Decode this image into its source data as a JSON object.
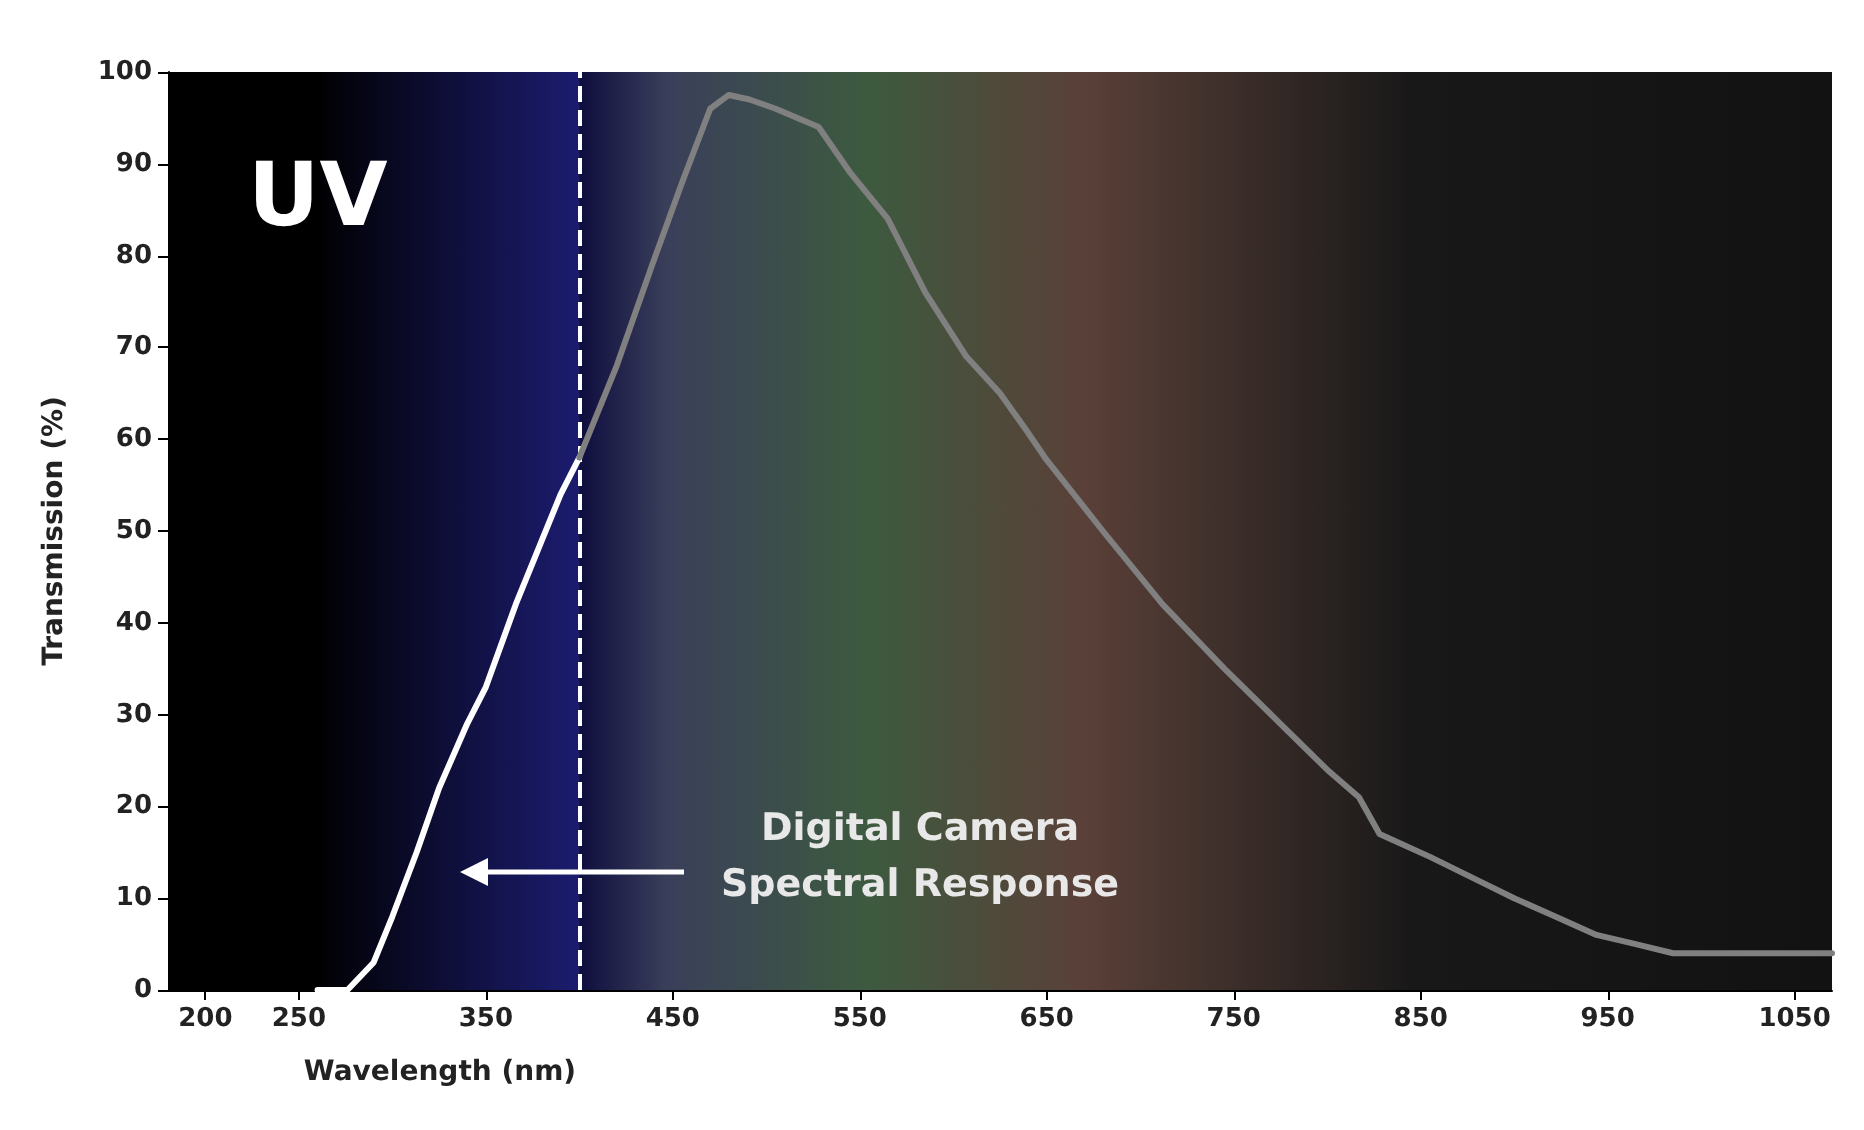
{
  "chart_data": {
    "type": "line",
    "xlabel": "Wavelength (nm)",
    "ylabel": "Transmission (%)",
    "xlim": [
      180,
      1070
    ],
    "xticks": [
      200,
      250,
      350,
      450,
      550,
      650,
      750,
      850,
      950,
      1050
    ],
    "ylim": [
      0,
      100
    ],
    "yticks": [
      0,
      10,
      20,
      30,
      40,
      50,
      60,
      70,
      80,
      90,
      100
    ],
    "grid": false,
    "marker": "none",
    "line_style": "solid",
    "series": [
      {
        "color": "#ffffff",
        "x": [
          260,
          276,
          290,
          300,
          313,
          325,
          340,
          350,
          366,
          380,
          390,
          400
        ],
        "values": [
          0,
          0,
          3,
          8,
          15,
          22,
          29,
          33,
          42,
          49,
          54,
          58
        ]
      },
      {
        "color": "#808080",
        "x": [
          400,
          420,
          439,
          455,
          470,
          480,
          491,
          505,
          528,
          545,
          565,
          585,
          607,
          625,
          639,
          649,
          680,
          712,
          745,
          775,
          800,
          817,
          828,
          855,
          880,
          900,
          922,
          944,
          965,
          985,
          1020,
          1070
        ],
        "values": [
          58,
          68,
          79,
          88,
          96,
          97.5,
          97,
          96,
          94,
          89,
          84,
          76,
          69,
          65,
          61,
          58,
          50,
          42,
          35,
          29,
          24,
          21,
          17,
          14.5,
          12,
          10,
          8,
          6,
          5,
          4,
          4,
          4
        ]
      }
    ],
    "ref_lines": [
      {
        "axis": "x",
        "value": 400,
        "color": "#ffffff",
        "line_style": "dashed"
      }
    ],
    "bands": [
      {
        "axis": "x",
        "from": 180,
        "to": 400,
        "label": "UV",
        "color": "#1c1c70"
      }
    ],
    "annotations": [
      "Digital Camera\nSpectral Response"
    ]
  }
}
